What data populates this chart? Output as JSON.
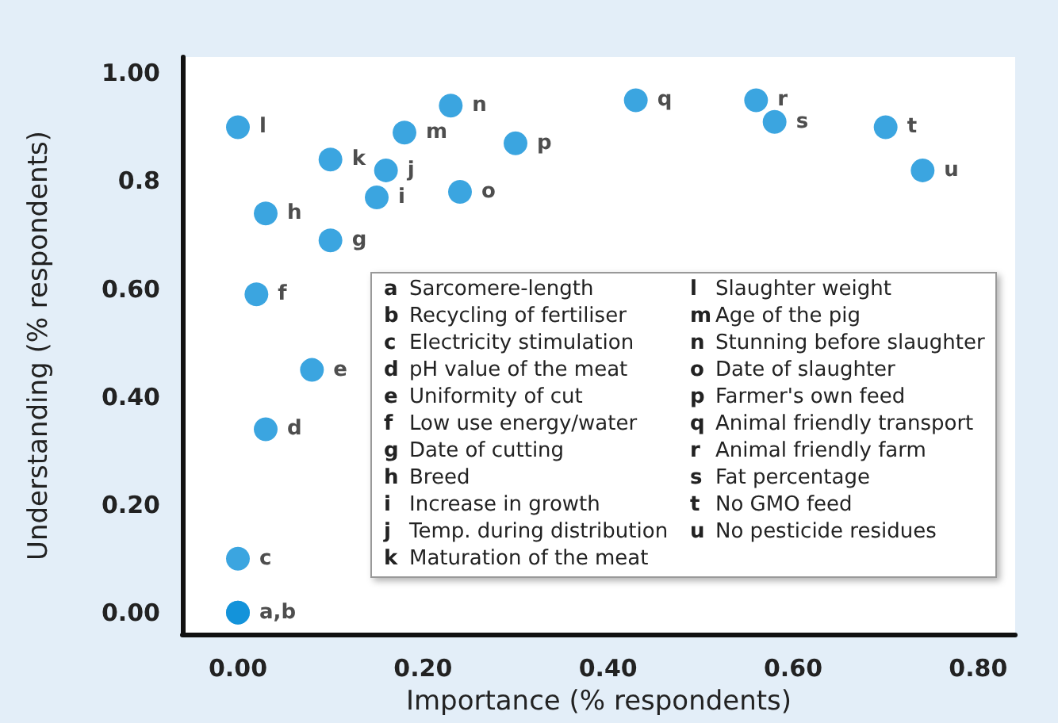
{
  "chart_data": {
    "type": "scatter",
    "xlabel": "Importance (% respondents)",
    "ylabel": "Understanding (% respondents)",
    "x": [
      0.0,
      0.0,
      0.0,
      0.03,
      0.08,
      0.02,
      0.1,
      0.03,
      0.15,
      0.16,
      0.1,
      0.0,
      0.18,
      0.23,
      0.24,
      0.3,
      0.43,
      0.56,
      0.58,
      0.7,
      0.74
    ],
    "series": [
      {
        "color": "#0a8fd8",
        "values": [
          0.0,
          0.0,
          0.1,
          0.34,
          0.45,
          0.59,
          0.69,
          0.74,
          0.77,
          0.82,
          0.84,
          0.9,
          0.89,
          0.94,
          0.78,
          0.87,
          0.95,
          0.95,
          0.91,
          0.9,
          0.82
        ],
        "value_labels": [
          "a,b",
          null,
          "c",
          "d",
          "e",
          "f",
          "g",
          "h",
          "i",
          "j",
          "k",
          "l",
          "m",
          "n",
          "o",
          "p",
          "q",
          "r",
          "s",
          "t",
          "u"
        ]
      }
    ],
    "xlim": [
      -0.06,
      0.84
    ],
    "ylim": [
      -0.04,
      1.03
    ],
    "xticks": [
      {
        "value": 0,
        "label": "0.00"
      },
      {
        "value": 0.2,
        "label": "0.20"
      },
      {
        "value": 0.4,
        "label": "0.40"
      },
      {
        "value": 0.6,
        "label": "0.60"
      },
      {
        "value": 0.8,
        "label": "0.80"
      }
    ],
    "yticks": [
      {
        "value": 0,
        "label": "0.00"
      },
      {
        "value": 0.2,
        "label": "0.20"
      },
      {
        "value": 0.4,
        "label": "0.40"
      },
      {
        "value": 0.6,
        "label": "0.60"
      },
      {
        "value": 0.8,
        "label": "0.8"
      },
      {
        "value": 1,
        "label": "1.00"
      }
    ],
    "grid": false,
    "marker": "circle",
    "annotations": [
      "a Sarcomere-length",
      "b Recycling of fertiliser",
      "c Electricity stimulation",
      "d pH value of the meat",
      "e Uniformity of cut",
      "f Low use energy/water",
      "g Date of cutting",
      "h Breed",
      "i Increase in growth",
      "j Temp. during distribution",
      "k Maturation of the meat",
      "l Slaughter weight",
      "m Age of the pig",
      "n Stunning before slaughter",
      "o Date of slaughter",
      "p Farmer's own feed",
      "q Animal friendly transport",
      "r Animal friendly farm",
      "s Fat percentage",
      "t No GMO feed",
      "u No pesticide residues"
    ]
  }
}
